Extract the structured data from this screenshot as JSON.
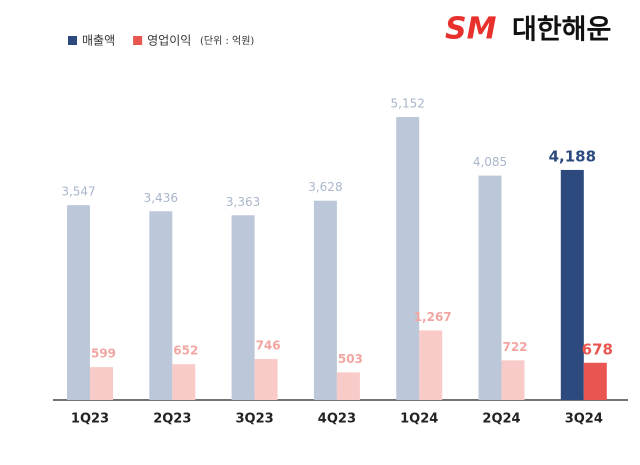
{
  "chart_data": {
    "type": "bar",
    "brand_mark": "SM",
    "brand_name": "대한해운",
    "unit_note": "(단위 : 억원)",
    "categories": [
      "1Q23",
      "2Q23",
      "3Q23",
      "4Q23",
      "1Q24",
      "2Q24",
      "3Q24"
    ],
    "series": [
      {
        "name": "매출액",
        "color": "#2c4a7e",
        "colors": [
          "#bcc8d9",
          "#bcc8d9",
          "#bcc8d9",
          "#bcc8d9",
          "#bcc8d9",
          "#bcc8d9",
          "#2c4a7e"
        ],
        "label_colors": [
          "#a9b6cb",
          "#a9b6cb",
          "#a9b6cb",
          "#a9b6cb",
          "#a9b6cb",
          "#a9b6cb",
          "#2c4a7e"
        ],
        "values": [
          3547,
          3436,
          3363,
          3628,
          5152,
          4085,
          4188
        ],
        "value_labels": [
          "3,547",
          "3,436",
          "3,363",
          "3,628",
          "5,152",
          "4,085",
          "4,188"
        ]
      },
      {
        "name": "영업이익",
        "color": "#e8564f",
        "colors": [
          "#f8cbc9",
          "#f8cbc9",
          "#f8cbc9",
          "#f8cbc9",
          "#f8cbc9",
          "#f8cbc9",
          "#e8564f"
        ],
        "label_colors": [
          "#f2a6a2",
          "#f2a6a2",
          "#f2a6a2",
          "#f2a6a2",
          "#f2a6a2",
          "#f2a6a2",
          "#e8564f"
        ],
        "values": [
          599,
          652,
          746,
          503,
          1267,
          722,
          678
        ],
        "value_labels": [
          "599",
          "652",
          "746",
          "503",
          "1,267",
          "722",
          "678"
        ]
      }
    ]
  }
}
